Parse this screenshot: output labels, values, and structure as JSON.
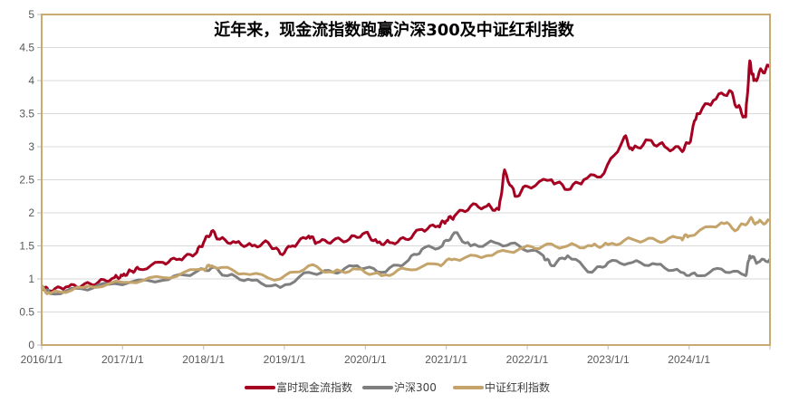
{
  "chart_data": {
    "type": "line",
    "title": "近年来，现金流指数跑赢沪深300及中证红利指数",
    "xlabel": "",
    "ylabel": "",
    "xlim": [
      2016.0,
      2025.0
    ],
    "ylim": [
      0,
      5
    ],
    "yticks": [
      "0",
      "0.5",
      "1",
      "1.5",
      "2",
      "2.5",
      "3",
      "3.5",
      "4",
      "4.5",
      "5"
    ],
    "xticks": [
      "2016/1/1",
      "2017/1/1",
      "2018/1/1",
      "2019/1/1",
      "2020/1/1",
      "2021/1/1",
      "2022/1/1",
      "2023/1/1",
      "2024/1/1"
    ],
    "grid": true,
    "legend_position": "bottom",
    "series": [
      {
        "name": "富时现金流指数",
        "color": "#a50021",
        "x": [
          2016.0,
          2016.1,
          2016.3,
          2016.5,
          2016.7,
          2016.9,
          2017.0,
          2017.1,
          2017.2,
          2017.5,
          2017.7,
          2017.9,
          2018.0,
          2018.1,
          2018.2,
          2018.4,
          2018.6,
          2018.8,
          2018.95,
          2019.1,
          2019.3,
          2019.4,
          2019.6,
          2019.8,
          2020.0,
          2020.15,
          2020.3,
          2020.5,
          2020.7,
          2020.9,
          2021.0,
          2021.1,
          2021.3,
          2021.5,
          2021.65,
          2021.72,
          2021.85,
          2022.0,
          2022.3,
          2022.5,
          2022.7,
          2022.95,
          2023.2,
          2023.3,
          2023.5,
          2023.7,
          2023.9,
          2024.0,
          2024.1,
          2024.3,
          2024.5,
          2024.6,
          2024.7,
          2024.75,
          2024.8,
          2024.9,
          2025.0
        ],
        "y": [
          0.88,
          0.82,
          0.88,
          0.9,
          0.95,
          1.02,
          1.05,
          1.12,
          1.15,
          1.25,
          1.3,
          1.38,
          1.55,
          1.72,
          1.6,
          1.55,
          1.5,
          1.55,
          1.38,
          1.5,
          1.65,
          1.55,
          1.58,
          1.6,
          1.7,
          1.55,
          1.55,
          1.6,
          1.75,
          1.8,
          1.88,
          1.95,
          2.1,
          2.1,
          2.05,
          2.65,
          2.25,
          2.4,
          2.5,
          2.35,
          2.5,
          2.6,
          3.15,
          2.95,
          3.1,
          3.0,
          2.95,
          3.05,
          3.5,
          3.7,
          3.85,
          3.6,
          3.45,
          4.3,
          4.0,
          4.15,
          4.2
        ]
      },
      {
        "name": "沪深300",
        "color": "#7f7f7f",
        "x": [
          2016.0,
          2016.1,
          2016.5,
          2016.9,
          2017.5,
          2017.9,
          2018.1,
          2018.3,
          2018.6,
          2018.95,
          2019.3,
          2019.6,
          2019.9,
          2020.2,
          2020.5,
          2020.7,
          2020.95,
          2021.1,
          2021.3,
          2021.6,
          2021.9,
          2022.2,
          2022.3,
          2022.5,
          2022.8,
          2023.0,
          2023.3,
          2023.6,
          2023.9,
          2024.1,
          2024.4,
          2024.7,
          2024.75,
          2024.85,
          2025.0
        ],
        "y": [
          0.9,
          0.78,
          0.85,
          0.93,
          0.98,
          1.1,
          1.17,
          1.05,
          0.98,
          0.87,
          1.1,
          1.1,
          1.2,
          1.1,
          1.25,
          1.45,
          1.5,
          1.7,
          1.5,
          1.55,
          1.5,
          1.35,
          1.2,
          1.35,
          1.1,
          1.25,
          1.25,
          1.22,
          1.1,
          1.05,
          1.15,
          1.05,
          1.35,
          1.25,
          1.3
        ]
      },
      {
        "name": "中证红利指数",
        "color": "#c4a46a",
        "x": [
          2016.0,
          2016.1,
          2016.5,
          2017.0,
          2017.5,
          2018.0,
          2018.1,
          2018.5,
          2018.95,
          2019.3,
          2019.6,
          2019.9,
          2020.2,
          2020.5,
          2020.9,
          2021.1,
          2021.5,
          2021.9,
          2022.2,
          2022.5,
          2022.8,
          2023.0,
          2023.3,
          2023.6,
          2023.9,
          2024.0,
          2024.4,
          2024.6,
          2024.75,
          2024.85,
          2025.0
        ],
        "y": [
          0.85,
          0.78,
          0.87,
          0.95,
          1.02,
          1.15,
          1.2,
          1.08,
          1.0,
          1.2,
          1.1,
          1.15,
          1.05,
          1.15,
          1.22,
          1.3,
          1.35,
          1.45,
          1.5,
          1.5,
          1.5,
          1.52,
          1.6,
          1.58,
          1.62,
          1.65,
          1.85,
          1.75,
          1.9,
          1.85,
          1.88
        ]
      }
    ]
  }
}
